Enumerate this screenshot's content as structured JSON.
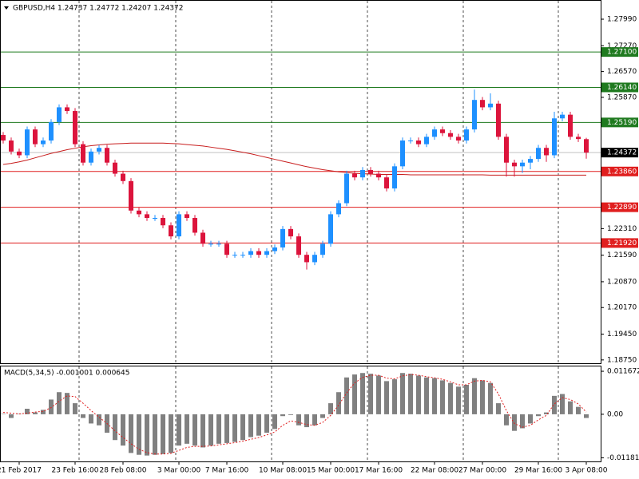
{
  "chart_data": [
    {
      "type": "candlestick",
      "title": "GBPUSD,H4 1.24737 1.24772 1.24207 1.24372",
      "up_color": "#1e90ff",
      "down_color": "#dc143c",
      "categories": [
        null,
        null,
        "21 Feb 2017",
        null,
        null,
        null,
        null,
        null,
        null,
        "23 Feb 16:00",
        null,
        null,
        null,
        null,
        null,
        "28 Feb 08:00",
        null,
        null,
        null,
        null,
        null,
        null,
        "3 Mar 00:00",
        null,
        null,
        null,
        null,
        null,
        "7 Mar 16:00",
        null,
        null,
        null,
        null,
        null,
        null,
        "10 Mar 08:00",
        null,
        null,
        null,
        null,
        null,
        "15 Mar 00:00",
        null,
        null,
        null,
        null,
        null,
        "17 Mar 16:00",
        null,
        null,
        null,
        null,
        null,
        null,
        "22 Mar 08:00",
        null,
        null,
        null,
        null,
        null,
        "27 Mar 00:00",
        null,
        null,
        null,
        null,
        null,
        null,
        "29 Mar 16:00",
        null,
        null,
        null,
        null,
        null,
        "3 Apr 08:00"
      ],
      "ohlc": [
        [
          1.2485,
          1.2493,
          1.2462,
          1.247
        ],
        [
          1.247,
          1.2478,
          1.2432,
          1.244
        ],
        [
          1.244,
          1.2448,
          1.2422,
          1.243
        ],
        [
          1.243,
          1.2508,
          1.2422,
          1.25
        ],
        [
          1.25,
          1.2508,
          1.2452,
          1.246
        ],
        [
          1.246,
          1.2478,
          1.2452,
          1.247
        ],
        [
          1.247,
          1.2528,
          1.2462,
          1.252
        ],
        [
          1.252,
          1.2568,
          1.2512,
          1.256
        ],
        [
          1.256,
          1.2568,
          1.2542,
          1.255
        ],
        [
          1.255,
          1.2558,
          1.2452,
          1.246
        ],
        [
          1.246,
          1.2468,
          1.2402,
          1.241
        ],
        [
          1.241,
          1.2448,
          1.2402,
          1.244
        ],
        [
          1.244,
          1.2458,
          1.2432,
          1.245
        ],
        [
          1.245,
          1.2458,
          1.2402,
          1.241
        ],
        [
          1.241,
          1.2418,
          1.2372,
          1.238
        ],
        [
          1.238,
          1.2388,
          1.2352,
          1.236
        ],
        [
          1.236,
          1.2368,
          1.2272,
          1.228
        ],
        [
          1.228,
          1.2288,
          1.2262,
          1.227
        ],
        [
          1.227,
          1.2278,
          1.2252,
          1.226
        ],
        [
          1.226,
          1.2268,
          1.2252,
          1.226
        ],
        [
          1.226,
          1.2268,
          1.2232,
          1.224
        ],
        [
          1.224,
          1.2248,
          1.2202,
          1.221
        ],
        [
          1.221,
          1.2278,
          1.2202,
          1.227
        ],
        [
          1.227,
          1.2278,
          1.2252,
          1.226
        ],
        [
          1.226,
          1.2268,
          1.2212,
          1.222
        ],
        [
          1.222,
          1.2228,
          1.2182,
          1.219
        ],
        [
          1.219,
          1.2198,
          1.2182,
          1.219
        ],
        [
          1.219,
          1.2198,
          1.2182,
          1.219
        ],
        [
          1.219,
          1.2198,
          1.2152,
          1.216
        ],
        [
          1.216,
          1.2168,
          1.2152,
          1.216
        ],
        [
          1.216,
          1.2168,
          1.2152,
          1.216
        ],
        [
          1.216,
          1.2178,
          1.2152,
          1.217
        ],
        [
          1.217,
          1.2178,
          1.2152,
          1.216
        ],
        [
          1.216,
          1.2178,
          1.2152,
          1.217
        ],
        [
          1.217,
          1.2188,
          1.2162,
          1.218
        ],
        [
          1.218,
          1.2238,
          1.2172,
          1.223
        ],
        [
          1.223,
          1.2238,
          1.2202,
          1.221
        ],
        [
          1.221,
          1.2218,
          1.2152,
          1.216
        ],
        [
          1.216,
          1.2168,
          1.212,
          1.214
        ],
        [
          1.214,
          1.2168,
          1.2132,
          1.216
        ],
        [
          1.216,
          1.2198,
          1.2152,
          1.219
        ],
        [
          1.219,
          1.2278,
          1.2182,
          1.227
        ],
        [
          1.227,
          1.2308,
          1.2262,
          1.23
        ],
        [
          1.23,
          1.2388,
          1.2292,
          1.238
        ],
        [
          1.238,
          1.2388,
          1.2362,
          1.237
        ],
        [
          1.237,
          1.2398,
          1.2362,
          1.239
        ],
        [
          1.239,
          1.2398,
          1.2372,
          1.238
        ],
        [
          1.238,
          1.2388,
          1.2362,
          1.237
        ],
        [
          1.237,
          1.2378,
          1.2332,
          1.234
        ],
        [
          1.234,
          1.2408,
          1.2332,
          1.24
        ],
        [
          1.24,
          1.2478,
          1.2392,
          1.247
        ],
        [
          1.247,
          1.2478,
          1.2462,
          1.247
        ],
        [
          1.247,
          1.2478,
          1.2452,
          1.246
        ],
        [
          1.246,
          1.2488,
          1.2452,
          1.248
        ],
        [
          1.248,
          1.2508,
          1.2472,
          1.25
        ],
        [
          1.25,
          1.2508,
          1.2482,
          1.249
        ],
        [
          1.249,
          1.2498,
          1.2472,
          1.248
        ],
        [
          1.248,
          1.2488,
          1.2462,
          1.247
        ],
        [
          1.247,
          1.2508,
          1.2462,
          1.25
        ],
        [
          1.25,
          1.2608,
          1.2492,
          1.258
        ],
        [
          1.258,
          1.2588,
          1.2552,
          1.256
        ],
        [
          1.256,
          1.2598,
          1.2552,
          1.257
        ],
        [
          1.257,
          1.2578,
          1.2472,
          1.248
        ],
        [
          1.248,
          1.2488,
          1.2372,
          1.241
        ],
        [
          1.241,
          1.2418,
          1.2372,
          1.24
        ],
        [
          1.24,
          1.2418,
          1.2382,
          1.241
        ],
        [
          1.241,
          1.2428,
          1.2392,
          1.242
        ],
        [
          1.242,
          1.2458,
          1.2412,
          1.245
        ],
        [
          1.245,
          1.2458,
          1.2412,
          1.243
        ],
        [
          1.243,
          1.2548,
          1.2422,
          1.253
        ],
        [
          1.253,
          1.2548,
          1.2522,
          1.254
        ],
        [
          1.254,
          1.2548,
          1.2472,
          1.248
        ],
        [
          1.248,
          1.2488,
          1.2466,
          1.2474
        ],
        [
          1.24737,
          1.24772,
          1.24207,
          1.24372
        ]
      ],
      "ma": {
        "color": "#c81e1e",
        "values": [
          1.2405,
          1.2408,
          1.2412,
          1.2417,
          1.2423,
          1.2429,
          1.2435,
          1.244,
          1.2445,
          1.2449,
          1.2453,
          1.2456,
          1.2458,
          1.246,
          1.2461,
          1.2462,
          1.2463,
          1.2463,
          1.2463,
          1.2463,
          1.2463,
          1.2462,
          1.2461,
          1.2459,
          1.2457,
          1.2455,
          1.2452,
          1.2449,
          1.2446,
          1.2442,
          1.2438,
          1.2434,
          1.2429,
          1.2424,
          1.2419,
          1.2414,
          1.2409,
          1.2404,
          1.2399,
          1.2395,
          1.2391,
          1.2388,
          1.2385,
          1.2383,
          1.2381,
          1.238,
          1.2379,
          1.2378,
          1.2378,
          1.2378,
          1.2378,
          1.2377,
          1.2377,
          1.2377,
          1.2377,
          1.2377,
          1.2377,
          1.2377,
          1.2377,
          1.2377,
          1.2377,
          1.2376,
          1.2376,
          1.2376,
          1.2376,
          1.2376,
          1.2376,
          1.2376,
          1.2376,
          1.2376,
          1.2376,
          1.2376,
          1.2376,
          1.2376
        ]
      },
      "levels": [
        {
          "value": 1.271,
          "label": "1.27100",
          "color": "#1f7a1f"
        },
        {
          "value": 1.2614,
          "label": "1.26140",
          "color": "#1f7a1f"
        },
        {
          "value": 1.2519,
          "label": "1.25190",
          "color": "#1f7a1f"
        },
        {
          "value": 1.2386,
          "label": "1.23860",
          "color": "#e01e1e"
        },
        {
          "value": 1.2289,
          "label": "1.22890",
          "color": "#e01e1e"
        },
        {
          "value": 1.2192,
          "label": "1.21920",
          "color": "#e01e1e"
        }
      ],
      "current": {
        "value": 1.24372,
        "label": "1.24372"
      },
      "ylim": [
        1.1866,
        1.2851
      ],
      "yticks": [
        {
          "value": 1.2799,
          "label": "1.27990"
        },
        {
          "value": 1.2727,
          "label": "1.27270"
        },
        {
          "value": 1.2657,
          "label": "1.26570"
        },
        {
          "value": 1.2587,
          "label": "1.25870"
        },
        {
          "value": 1.2231,
          "label": "1.22310"
        },
        {
          "value": 1.2159,
          "label": "1.21590"
        },
        {
          "value": 1.2087,
          "label": "1.20870"
        },
        {
          "value": 1.2017,
          "label": "1.20170"
        },
        {
          "value": 1.1945,
          "label": "1.19450"
        },
        {
          "value": 1.1875,
          "label": "1.18750"
        }
      ]
    },
    {
      "type": "macd",
      "title": "MACD(5,34,5) -0.001001 0.000645",
      "color": "#808080",
      "values": [
        0.0001,
        -0.001,
        0.0001,
        0.0015,
        0.0005,
        0.0012,
        0.004,
        0.006,
        0.0058,
        0.003,
        -0.001,
        -0.0025,
        -0.003,
        -0.005,
        -0.007,
        -0.0085,
        -0.0105,
        -0.011,
        -0.0112,
        -0.011,
        -0.0108,
        -0.0105,
        -0.0085,
        -0.008,
        -0.0085,
        -0.009,
        -0.0085,
        -0.008,
        -0.0078,
        -0.0075,
        -0.007,
        -0.0062,
        -0.0058,
        -0.005,
        -0.004,
        -0.0005,
        -0.0002,
        -0.003,
        -0.0035,
        -0.003,
        -0.001,
        0.003,
        0.006,
        0.01,
        0.0108,
        0.0112,
        0.011,
        0.0105,
        0.009,
        0.0095,
        0.0112,
        0.011,
        0.0105,
        0.01,
        0.0098,
        0.0092,
        0.0085,
        0.0075,
        0.008,
        0.0098,
        0.0092,
        0.0085,
        0.003,
        -0.003,
        -0.0045,
        -0.0038,
        -0.0025,
        -0.0005,
        0.0005,
        0.005,
        0.0055,
        0.0035,
        0.002,
        -0.001
      ],
      "signal": {
        "color": "#e01e1e",
        "values": [
          0.0005,
          0.0003,
          0.0001,
          0.0003,
          0.0006,
          0.0008,
          0.0018,
          0.0035,
          0.005,
          0.0048,
          0.003,
          0.001,
          -0.0008,
          -0.0025,
          -0.0045,
          -0.0063,
          -0.008,
          -0.0095,
          -0.0104,
          -0.0108,
          -0.0108,
          -0.0106,
          -0.0098,
          -0.009,
          -0.0087,
          -0.0087,
          -0.0086,
          -0.0083,
          -0.008,
          -0.0077,
          -0.0073,
          -0.0068,
          -0.0063,
          -0.0056,
          -0.0048,
          -0.003,
          -0.0018,
          -0.0022,
          -0.0028,
          -0.003,
          -0.0022,
          -0.0003,
          0.0025,
          0.0058,
          0.0085,
          0.01,
          0.0106,
          0.0106,
          0.0098,
          0.0096,
          0.0104,
          0.0108,
          0.0106,
          0.0102,
          0.0099,
          0.0095,
          0.0088,
          0.008,
          0.008,
          0.009,
          0.0092,
          0.0088,
          0.0055,
          0.001,
          -0.0025,
          -0.0035,
          -0.003,
          -0.0015,
          -0.0003,
          0.0028,
          0.0045,
          0.004,
          0.0028,
          0.0006
        ]
      },
      "ylim": [
        -0.0128,
        0.0132
      ],
      "yticks": [
        {
          "value": 0.011672,
          "label": "0.011672"
        },
        {
          "value": 0,
          "label": "0.00"
        },
        {
          "value": -0.011812,
          "label": "-0.011812"
        }
      ]
    }
  ]
}
